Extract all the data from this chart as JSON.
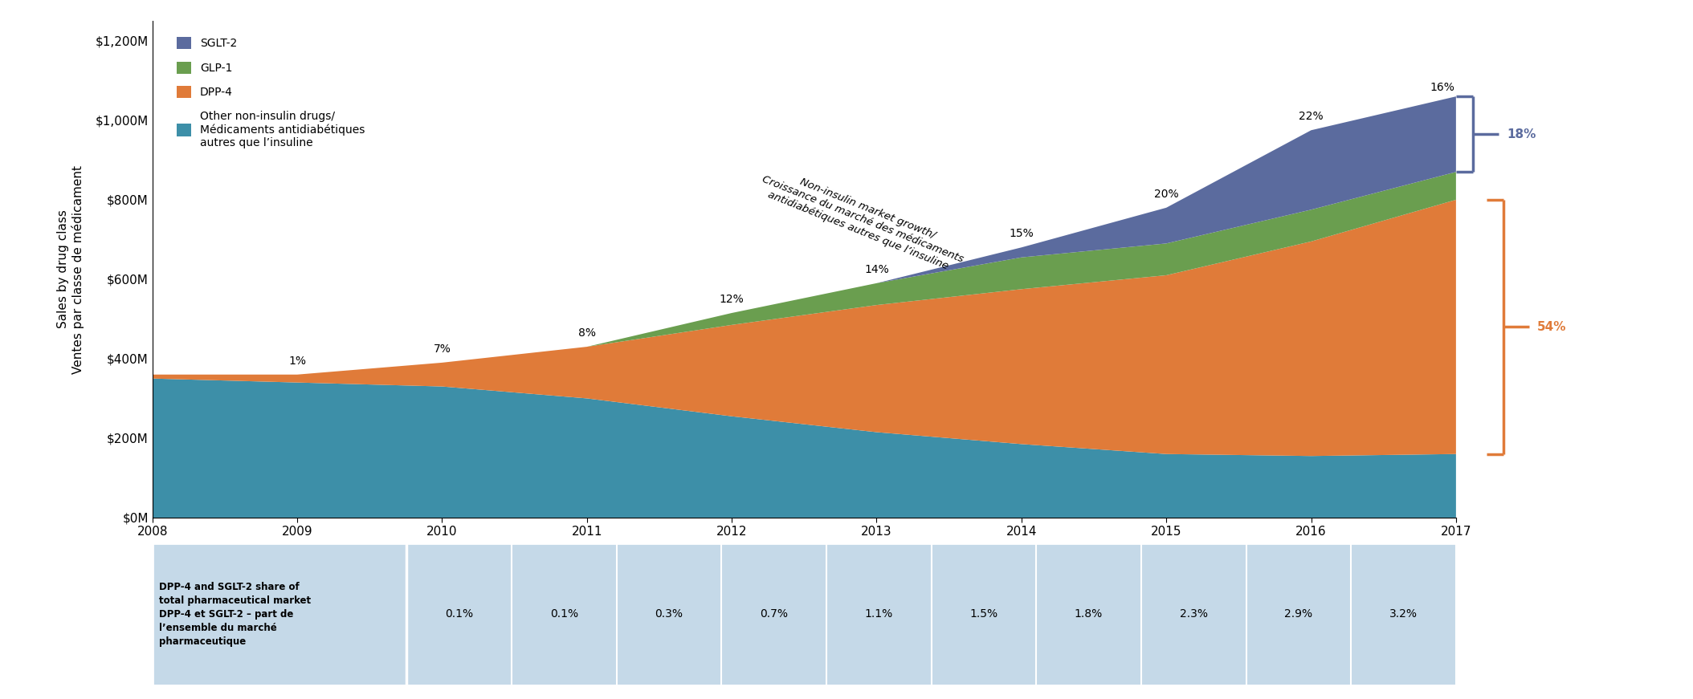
{
  "years": [
    2008,
    2009,
    2010,
    2011,
    2012,
    2013,
    2014,
    2015,
    2016,
    2017
  ],
  "sglt2": [
    0,
    0,
    0,
    0,
    0,
    0,
    25,
    90,
    200,
    190
  ],
  "glp1": [
    0,
    0,
    0,
    0,
    30,
    55,
    80,
    80,
    80,
    70
  ],
  "dpp4": [
    10,
    20,
    60,
    130,
    230,
    320,
    390,
    450,
    540,
    640
  ],
  "other": [
    350,
    340,
    330,
    300,
    255,
    215,
    185,
    160,
    155,
    160
  ],
  "colors": {
    "sglt2": "#5b6b9e",
    "glp1": "#6a9e4f",
    "dpp4": "#e07b39",
    "other": "#3d8fa8"
  },
  "growth_pcts": [
    "1%",
    "7%",
    "8%",
    "12%",
    "14%",
    "15%",
    "20%",
    "22%"
  ],
  "growth_years": [
    2009,
    2010,
    2011,
    2012,
    2013,
    2014,
    2015,
    2016
  ],
  "sglt2_pct_label": "16%",
  "sglt2_glp1_pct_label": "18%",
  "dpp4_pct_label": "54%",
  "bracket_color_blue": "#5b6b9e",
  "bracket_color_orange": "#e07b39",
  "ylabel": "Sales by drug class\nVentes par classe de médicament",
  "yticks": [
    0,
    200000000,
    400000000,
    600000000,
    800000000,
    1000000000,
    1200000000
  ],
  "ytick_labels": [
    "$0M",
    "$200M",
    "$400M",
    "$600M",
    "$800M",
    "$1,000M",
    "$1,200M"
  ],
  "legend_labels": [
    "SGLT-2",
    "GLP-1",
    "DPP-4",
    "Other non-insulin drugs/\nMédicaments antidiabétiques\nautres que l’insuline"
  ],
  "annotation_text": "Non-insulin market growth/\nCroissance du marché des médicaments\nantidiabétiques autres que l’insuline",
  "table_header_label1": "DPP-4 and SGLT-2 share of\ntotal pharmaceutical market",
  "table_header_label2": "DPP-4 et SGLT-2 – part de\nl’ensemble du marché\npharmaceutique",
  "table_values": [
    "0.1%",
    "0.1%",
    "0.3%",
    "0.7%",
    "1.1%",
    "1.5%",
    "1.8%",
    "2.3%",
    "2.9%",
    "3.2%"
  ],
  "table_bg_color": "#c5d9e8",
  "background_color": "#ffffff",
  "axis_bg_color": "#ffffff",
  "ylim_max": 1250000000
}
